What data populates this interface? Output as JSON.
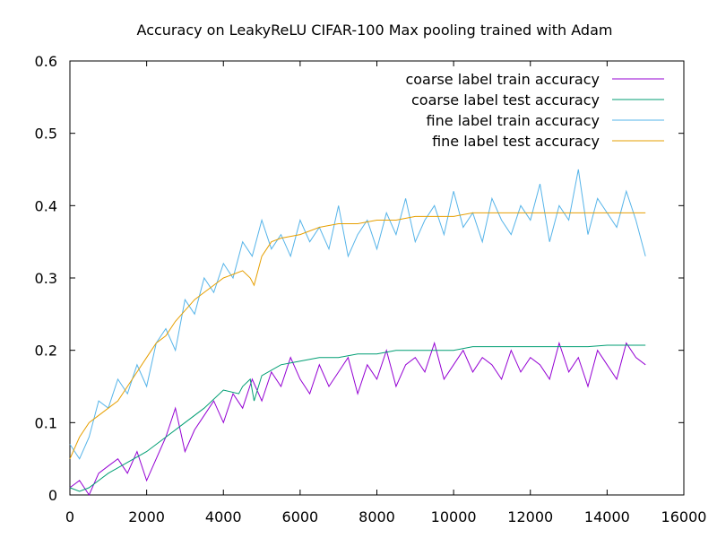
{
  "chart_data": {
    "type": "line",
    "title": "Accuracy on LeakyReLU CIFAR-100 Max pooling trained with Adam",
    "xlabel": "",
    "ylabel": "",
    "xlim": [
      0,
      16000
    ],
    "ylim": [
      0,
      0.6
    ],
    "x_ticks": [
      "0",
      "2000",
      "4000",
      "6000",
      "8000",
      "10000",
      "12000",
      "14000",
      "16000"
    ],
    "y_ticks": [
      "0",
      "0.1",
      "0.2",
      "0.3",
      "0.4",
      "0.5",
      "0.6"
    ],
    "x_tick_values": [
      0,
      2000,
      4000,
      6000,
      8000,
      10000,
      12000,
      14000,
      16000
    ],
    "y_tick_values": [
      0,
      0.1,
      0.2,
      0.3,
      0.4,
      0.5,
      0.6
    ],
    "grid": false,
    "legend": "top-right",
    "series": [
      {
        "name": "coarse label train accuracy",
        "color": "#9400d3",
        "x": [
          0,
          250,
          500,
          750,
          1000,
          1250,
          1500,
          1750,
          2000,
          2250,
          2500,
          2750,
          3000,
          3250,
          3500,
          3750,
          4000,
          4250,
          4500,
          4750,
          5000,
          5250,
          5500,
          5750,
          6000,
          6250,
          6500,
          6750,
          7000,
          7250,
          7500,
          7750,
          8000,
          8250,
          8500,
          8750,
          9000,
          9250,
          9500,
          9750,
          10000,
          10250,
          10500,
          10750,
          11000,
          11250,
          11500,
          11750,
          12000,
          12250,
          12500,
          12750,
          13000,
          13250,
          13500,
          13750,
          14000,
          14250,
          14500,
          14750,
          15000
        ],
        "y": [
          0.01,
          0.02,
          0.0,
          0.03,
          0.04,
          0.05,
          0.03,
          0.06,
          0.02,
          0.05,
          0.08,
          0.12,
          0.06,
          0.09,
          0.11,
          0.13,
          0.1,
          0.14,
          0.12,
          0.16,
          0.13,
          0.17,
          0.15,
          0.19,
          0.16,
          0.14,
          0.18,
          0.15,
          0.17,
          0.19,
          0.14,
          0.18,
          0.16,
          0.2,
          0.15,
          0.18,
          0.19,
          0.17,
          0.21,
          0.16,
          0.18,
          0.2,
          0.17,
          0.19,
          0.18,
          0.16,
          0.2,
          0.17,
          0.19,
          0.18,
          0.16,
          0.21,
          0.17,
          0.19,
          0.15,
          0.2,
          0.18,
          0.16,
          0.21,
          0.19,
          0.18
        ]
      },
      {
        "name": "coarse label test accuracy",
        "color": "#009e73",
        "x": [
          0,
          250,
          500,
          750,
          1000,
          1500,
          2000,
          2500,
          3000,
          3500,
          4000,
          4400,
          4500,
          4700,
          4800,
          5000,
          5500,
          6000,
          6500,
          7000,
          7500,
          8000,
          8500,
          9000,
          9500,
          10000,
          10500,
          11000,
          11500,
          12000,
          12500,
          13000,
          13500,
          14000,
          14500,
          15000
        ],
        "y": [
          0.01,
          0.005,
          0.01,
          0.02,
          0.03,
          0.045,
          0.06,
          0.08,
          0.1,
          0.12,
          0.145,
          0.14,
          0.15,
          0.16,
          0.13,
          0.165,
          0.18,
          0.185,
          0.19,
          0.19,
          0.195,
          0.195,
          0.2,
          0.2,
          0.2,
          0.2,
          0.205,
          0.205,
          0.205,
          0.205,
          0.205,
          0.205,
          0.205,
          0.207,
          0.207,
          0.207
        ]
      },
      {
        "name": "fine label train accuracy",
        "color": "#56b4e9",
        "x": [
          0,
          250,
          500,
          750,
          1000,
          1250,
          1500,
          1750,
          2000,
          2250,
          2500,
          2750,
          3000,
          3250,
          3500,
          3750,
          4000,
          4250,
          4500,
          4750,
          5000,
          5250,
          5500,
          5750,
          6000,
          6250,
          6500,
          6750,
          7000,
          7250,
          7500,
          7750,
          8000,
          8250,
          8500,
          8750,
          9000,
          9250,
          9500,
          9750,
          10000,
          10250,
          10500,
          10750,
          11000,
          11250,
          11500,
          11750,
          12000,
          12250,
          12500,
          12750,
          13000,
          13250,
          13500,
          13750,
          14000,
          14250,
          14500,
          14750,
          15000
        ],
        "y": [
          0.07,
          0.05,
          0.08,
          0.13,
          0.12,
          0.16,
          0.14,
          0.18,
          0.15,
          0.21,
          0.23,
          0.2,
          0.27,
          0.25,
          0.3,
          0.28,
          0.32,
          0.3,
          0.35,
          0.33,
          0.38,
          0.34,
          0.36,
          0.33,
          0.38,
          0.35,
          0.37,
          0.34,
          0.4,
          0.33,
          0.36,
          0.38,
          0.34,
          0.39,
          0.36,
          0.41,
          0.35,
          0.38,
          0.4,
          0.36,
          0.42,
          0.37,
          0.39,
          0.35,
          0.41,
          0.38,
          0.36,
          0.4,
          0.38,
          0.43,
          0.35,
          0.4,
          0.38,
          0.45,
          0.36,
          0.41,
          0.39,
          0.37,
          0.42,
          0.38,
          0.33
        ]
      },
      {
        "name": "fine label test accuracy",
        "color": "#e69f00",
        "x": [
          0,
          250,
          500,
          750,
          1000,
          1250,
          1500,
          1750,
          2000,
          2250,
          2500,
          2750,
          3000,
          3250,
          3500,
          3750,
          4000,
          4250,
          4500,
          4700,
          4800,
          5000,
          5250,
          5500,
          6000,
          6500,
          7000,
          7500,
          8000,
          8500,
          9000,
          9500,
          10000,
          10500,
          11000,
          11500,
          12000,
          12500,
          13000,
          13500,
          14000,
          14500,
          15000
        ],
        "y": [
          0.05,
          0.08,
          0.1,
          0.11,
          0.12,
          0.13,
          0.15,
          0.17,
          0.19,
          0.21,
          0.22,
          0.24,
          0.255,
          0.27,
          0.28,
          0.29,
          0.3,
          0.305,
          0.31,
          0.3,
          0.29,
          0.33,
          0.35,
          0.355,
          0.36,
          0.37,
          0.375,
          0.375,
          0.38,
          0.38,
          0.385,
          0.385,
          0.385,
          0.39,
          0.39,
          0.39,
          0.39,
          0.39,
          0.39,
          0.39,
          0.39,
          0.39,
          0.39
        ]
      }
    ]
  }
}
